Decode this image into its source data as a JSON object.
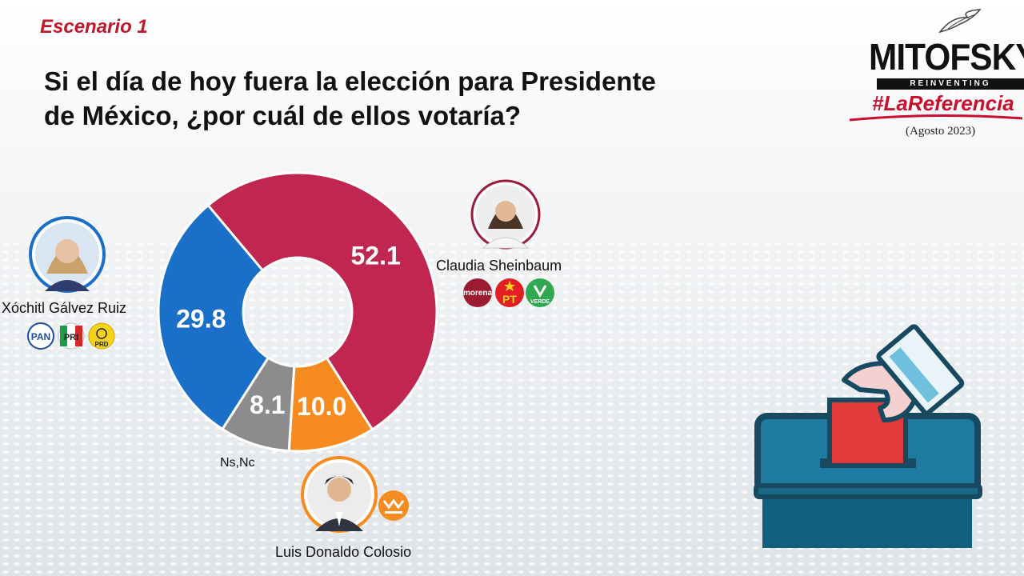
{
  "header": {
    "scenario": "Escenario 1",
    "question_line1": "Si el día de hoy fuera la elección para Presidente",
    "question_line2": "de México, ¿por cuál de ellos votaría?"
  },
  "logo": {
    "brand": "MITOFSKY",
    "tagline": "REINVENTING RESEARCH",
    "hashtag": "#LaReferencia",
    "date": "(Agosto 2023)"
  },
  "candidates": {
    "xochitl": {
      "name": "Xóchitl Gálvez Ruiz",
      "parties": [
        "PAN",
        "PRI",
        "PRD"
      ]
    },
    "claudia": {
      "name": "Claudia Sheinbaum",
      "parties": [
        "morena",
        "PT",
        "VERDE"
      ]
    },
    "colosio": {
      "name": "Luis Donaldo Colosio",
      "parties": [
        "MOVIMIENTO CIUDADANO"
      ]
    },
    "nsnc": {
      "name": "Ns,Nc"
    }
  },
  "colors": {
    "claudia": "#c0264f",
    "colosio": "#f68b1f",
    "nsnc": "#8c8c8c",
    "xochitl": "#1a6fc8"
  },
  "chart_data": {
    "type": "pie",
    "style": "donut",
    "categories": [
      "Claudia Sheinbaum",
      "Luis Donaldo Colosio",
      "Ns,Nc",
      "Xóchitl Gálvez Ruiz"
    ],
    "values": [
      52.1,
      10.0,
      8.1,
      29.8
    ],
    "labels": [
      "52.1",
      "10.0",
      "8.1",
      "29.8"
    ],
    "colors": [
      "#c0264f",
      "#f68b1f",
      "#8c8c8c",
      "#1a6fc8"
    ]
  }
}
